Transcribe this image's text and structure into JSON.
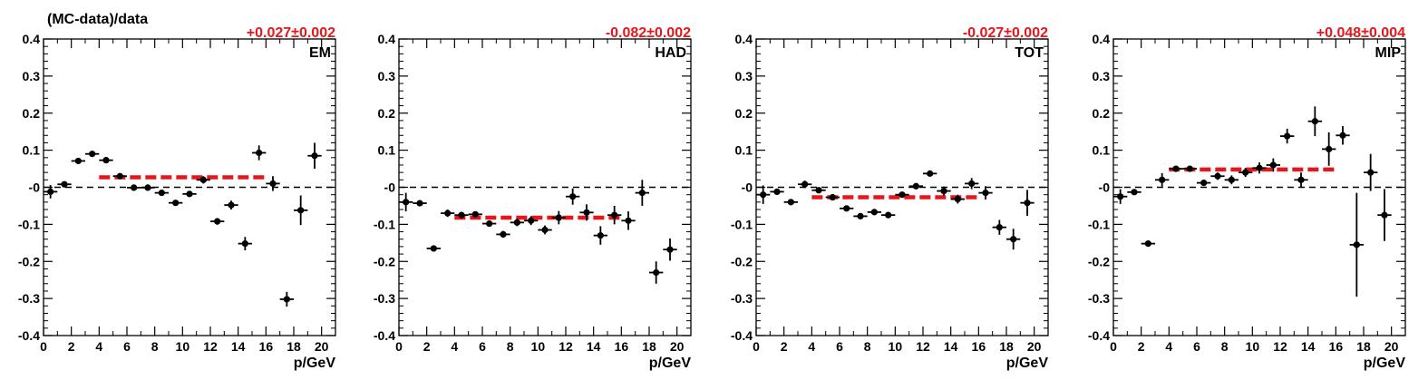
{
  "figure_title": "(MC-data)/data",
  "colors": {
    "fit": "#e8151b",
    "marker": "#000000",
    "axis": "#000000"
  },
  "chart_data": [
    {
      "type": "scatter",
      "label": "EM",
      "fit_text": "+0.027±0.002",
      "fit_value": 0.027,
      "fit_range": [
        4,
        16
      ],
      "xlabel": "p/GeV",
      "ylabel": "",
      "xlim": [
        0,
        21
      ],
      "ylim": [
        -0.4,
        0.4
      ],
      "x_ticks": [
        "0",
        "2",
        "4",
        "6",
        "8",
        "10",
        "12",
        "14",
        "16",
        "18",
        "20"
      ],
      "y_ticks": [
        "-0.4",
        "-0.3",
        "-0.2",
        "-0.1",
        "-0",
        "0.1",
        "0.2",
        "0.3",
        "0.4"
      ],
      "points": [
        {
          "x": 0.5,
          "y": -0.012,
          "err": 0.018
        },
        {
          "x": 1.5,
          "y": 0.008,
          "err": 0.006
        },
        {
          "x": 2.5,
          "y": 0.071,
          "err": 0.006
        },
        {
          "x": 3.5,
          "y": 0.09,
          "err": 0.006
        },
        {
          "x": 4.5,
          "y": 0.073,
          "err": 0.006
        },
        {
          "x": 5.5,
          "y": 0.03,
          "err": 0.005
        },
        {
          "x": 6.5,
          "y": -0.001,
          "err": 0.005
        },
        {
          "x": 7.5,
          "y": -0.001,
          "err": 0.005
        },
        {
          "x": 8.5,
          "y": -0.015,
          "err": 0.005
        },
        {
          "x": 9.5,
          "y": -0.042,
          "err": 0.006
        },
        {
          "x": 10.5,
          "y": -0.018,
          "err": 0.007
        },
        {
          "x": 11.5,
          "y": 0.02,
          "err": 0.01
        },
        {
          "x": 12.5,
          "y": -0.092,
          "err": 0.009
        },
        {
          "x": 13.5,
          "y": -0.048,
          "err": 0.012
        },
        {
          "x": 14.5,
          "y": -0.152,
          "err": 0.018
        },
        {
          "x": 15.5,
          "y": 0.093,
          "err": 0.02
        },
        {
          "x": 16.5,
          "y": 0.01,
          "err": 0.02
        },
        {
          "x": 17.5,
          "y": -0.302,
          "err": 0.02
        },
        {
          "x": 18.5,
          "y": -0.062,
          "err": 0.04
        },
        {
          "x": 19.5,
          "y": 0.085,
          "err": 0.035
        }
      ]
    },
    {
      "type": "scatter",
      "label": "HAD",
      "fit_text": "-0.082±0.002",
      "fit_value": -0.082,
      "fit_range": [
        4,
        16
      ],
      "xlabel": "p/GeV",
      "ylabel": "",
      "xlim": [
        0,
        21
      ],
      "ylim": [
        -0.4,
        0.4
      ],
      "x_ticks": [
        "0",
        "2",
        "4",
        "6",
        "8",
        "10",
        "12",
        "14",
        "16",
        "18",
        "20"
      ],
      "y_ticks": [
        "-0.4",
        "-0.3",
        "-0.2",
        "-0.1",
        "-0",
        "0.1",
        "0.2",
        "0.3",
        "0.4"
      ],
      "points": [
        {
          "x": 0.5,
          "y": -0.04,
          "err": 0.025
        },
        {
          "x": 1.5,
          "y": -0.043,
          "err": 0.006
        },
        {
          "x": 2.5,
          "y": -0.165,
          "err": 0.006
        },
        {
          "x": 3.5,
          "y": -0.07,
          "err": 0.01
        },
        {
          "x": 4.5,
          "y": -0.075,
          "err": 0.006
        },
        {
          "x": 5.5,
          "y": -0.073,
          "err": 0.006
        },
        {
          "x": 6.5,
          "y": -0.098,
          "err": 0.008
        },
        {
          "x": 7.5,
          "y": -0.127,
          "err": 0.009
        },
        {
          "x": 8.5,
          "y": -0.095,
          "err": 0.01
        },
        {
          "x": 9.5,
          "y": -0.09,
          "err": 0.012
        },
        {
          "x": 10.5,
          "y": -0.115,
          "err": 0.012
        },
        {
          "x": 11.5,
          "y": -0.082,
          "err": 0.018
        },
        {
          "x": 12.5,
          "y": -0.025,
          "err": 0.022
        },
        {
          "x": 13.5,
          "y": -0.068,
          "err": 0.022
        },
        {
          "x": 14.5,
          "y": -0.13,
          "err": 0.025
        },
        {
          "x": 15.5,
          "y": -0.075,
          "err": 0.025
        },
        {
          "x": 16.5,
          "y": -0.09,
          "err": 0.025
        },
        {
          "x": 17.5,
          "y": -0.015,
          "err": 0.035
        },
        {
          "x": 18.5,
          "y": -0.23,
          "err": 0.03
        },
        {
          "x": 19.5,
          "y": -0.168,
          "err": 0.03
        }
      ]
    },
    {
      "type": "scatter",
      "label": "TOT",
      "fit_text": "-0.027±0.002",
      "fit_value": -0.027,
      "fit_range": [
        4,
        16
      ],
      "xlabel": "p/GeV",
      "ylabel": "",
      "xlim": [
        0,
        21
      ],
      "ylim": [
        -0.4,
        0.4
      ],
      "x_ticks": [
        "0",
        "2",
        "4",
        "6",
        "8",
        "10",
        "12",
        "14",
        "16",
        "18",
        "20"
      ],
      "y_ticks": [
        "-0.4",
        "-0.3",
        "-0.2",
        "-0.1",
        "-0",
        "0.1",
        "0.2",
        "0.3",
        "0.4"
      ],
      "points": [
        {
          "x": 0.5,
          "y": -0.02,
          "err": 0.025
        },
        {
          "x": 1.5,
          "y": -0.012,
          "err": 0.006
        },
        {
          "x": 2.5,
          "y": -0.04,
          "err": 0.006
        },
        {
          "x": 3.5,
          "y": 0.008,
          "err": 0.01
        },
        {
          "x": 4.5,
          "y": -0.008,
          "err": 0.006
        },
        {
          "x": 5.5,
          "y": -0.027,
          "err": 0.005
        },
        {
          "x": 6.5,
          "y": -0.057,
          "err": 0.005
        },
        {
          "x": 7.5,
          "y": -0.078,
          "err": 0.006
        },
        {
          "x": 8.5,
          "y": -0.067,
          "err": 0.006
        },
        {
          "x": 9.5,
          "y": -0.075,
          "err": 0.006
        },
        {
          "x": 10.5,
          "y": -0.02,
          "err": 0.008
        },
        {
          "x": 11.5,
          "y": 0.003,
          "err": 0.008
        },
        {
          "x": 12.5,
          "y": 0.037,
          "err": 0.008
        },
        {
          "x": 13.5,
          "y": -0.01,
          "err": 0.012
        },
        {
          "x": 14.5,
          "y": -0.032,
          "err": 0.012
        },
        {
          "x": 15.5,
          "y": 0.01,
          "err": 0.015
        },
        {
          "x": 16.5,
          "y": -0.015,
          "err": 0.018
        },
        {
          "x": 17.5,
          "y": -0.108,
          "err": 0.02
        },
        {
          "x": 18.5,
          "y": -0.14,
          "err": 0.028
        },
        {
          "x": 19.5,
          "y": -0.042,
          "err": 0.035
        }
      ]
    },
    {
      "type": "scatter",
      "label": "MIP",
      "fit_text": "+0.048±0.004",
      "fit_value": 0.048,
      "fit_range": [
        4,
        16
      ],
      "xlabel": "p/GeV",
      "ylabel": "",
      "xlim": [
        0,
        21
      ],
      "ylim": [
        -0.4,
        0.4
      ],
      "x_ticks": [
        "0",
        "2",
        "4",
        "6",
        "8",
        "10",
        "12",
        "14",
        "16",
        "18",
        "20"
      ],
      "y_ticks": [
        "-0.4",
        "-0.3",
        "-0.2",
        "-0.1",
        "-0",
        "0.1",
        "0.2",
        "0.3",
        "0.4"
      ],
      "points": [
        {
          "x": 0.5,
          "y": -0.025,
          "err": 0.02
        },
        {
          "x": 1.5,
          "y": -0.013,
          "err": 0.006
        },
        {
          "x": 2.5,
          "y": -0.152,
          "err": 0.008
        },
        {
          "x": 3.5,
          "y": 0.02,
          "err": 0.018
        },
        {
          "x": 4.5,
          "y": 0.05,
          "err": 0.006
        },
        {
          "x": 5.5,
          "y": 0.05,
          "err": 0.006
        },
        {
          "x": 6.5,
          "y": 0.012,
          "err": 0.008
        },
        {
          "x": 7.5,
          "y": 0.03,
          "err": 0.01
        },
        {
          "x": 8.5,
          "y": 0.02,
          "err": 0.012
        },
        {
          "x": 9.5,
          "y": 0.04,
          "err": 0.012
        },
        {
          "x": 10.5,
          "y": 0.052,
          "err": 0.015
        },
        {
          "x": 11.5,
          "y": 0.06,
          "err": 0.018
        },
        {
          "x": 12.5,
          "y": 0.138,
          "err": 0.02
        },
        {
          "x": 13.5,
          "y": 0.02,
          "err": 0.02
        },
        {
          "x": 14.5,
          "y": 0.178,
          "err": 0.04
        },
        {
          "x": 15.5,
          "y": 0.103,
          "err": 0.045
        },
        {
          "x": 16.5,
          "y": 0.14,
          "err": 0.025
        },
        {
          "x": 17.5,
          "y": -0.155,
          "err": 0.14
        },
        {
          "x": 18.5,
          "y": 0.04,
          "err": 0.05
        },
        {
          "x": 19.5,
          "y": -0.075,
          "err": 0.07
        }
      ]
    }
  ]
}
